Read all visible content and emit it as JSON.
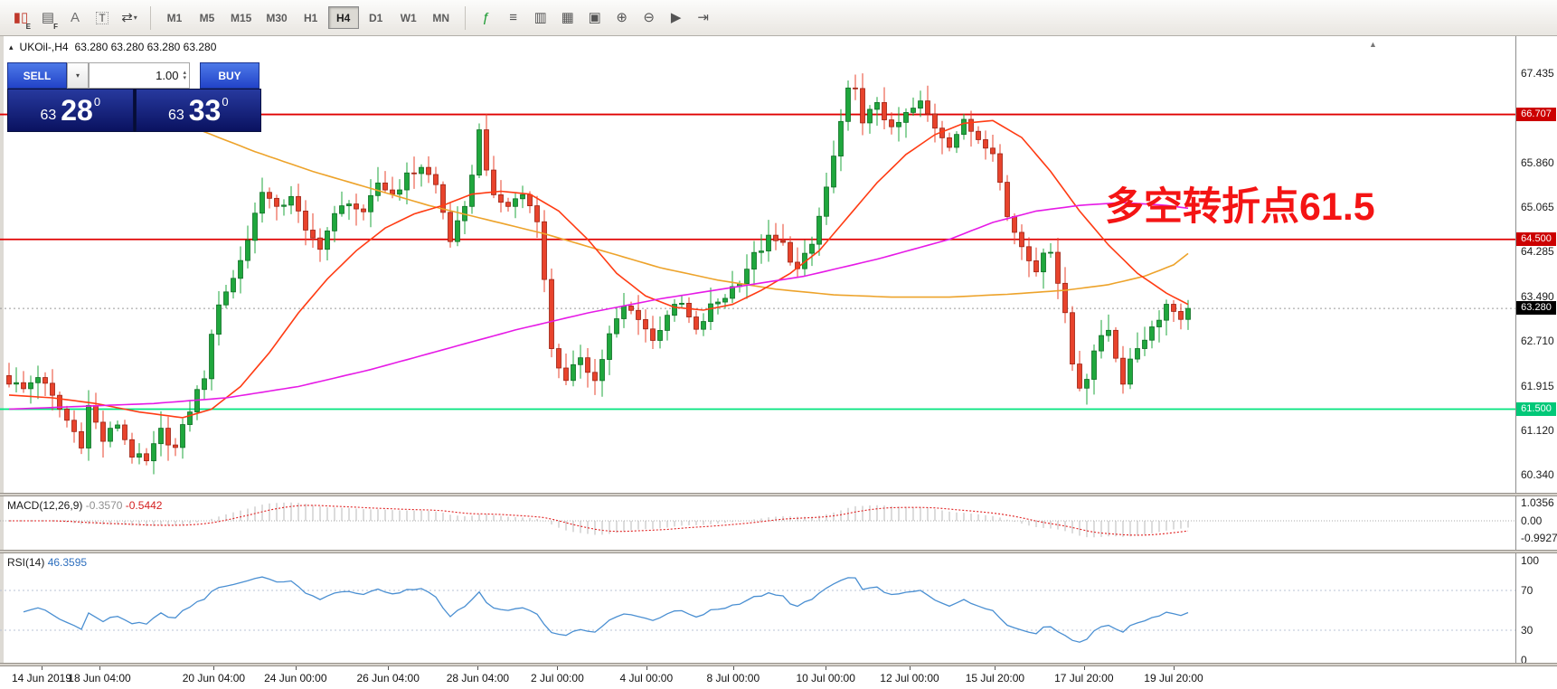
{
  "toolbar": {
    "left_icons": [
      {
        "name": "candlestick-chart-icon",
        "glyph": "▮▯",
        "color": "#c0392b",
        "sub": "E"
      },
      {
        "name": "chart-grid-icon",
        "glyph": "▤",
        "color": "#5a5a5a",
        "sub": "F"
      },
      {
        "name": "font-label-icon",
        "glyph": "A",
        "color": "#707070"
      },
      {
        "name": "text-tool-icon",
        "glyph": "T",
        "color": "#444444",
        "boxed": true
      },
      {
        "name": "drawing-tools-dropdown",
        "glyph": "⇄",
        "color": "#444444",
        "caret": true
      }
    ],
    "timeframes": {
      "items": [
        "M1",
        "M5",
        "M15",
        "M30",
        "H1",
        "H4",
        "D1",
        "W1",
        "MN"
      ],
      "active": "H4"
    },
    "right_icons": [
      {
        "name": "indicators-icon",
        "glyph": "ƒ",
        "color": "#1a9a30"
      },
      {
        "name": "objects-list-icon",
        "glyph": "≡",
        "color": "#555555"
      },
      {
        "name": "periods-icon",
        "glyph": "▥",
        "color": "#555555"
      },
      {
        "name": "templates-icon",
        "glyph": "▦",
        "color": "#555555"
      },
      {
        "name": "tile-windows-icon",
        "glyph": "▣",
        "color": "#555555"
      },
      {
        "name": "zoom-in-icon",
        "glyph": "⊕",
        "color": "#555555"
      },
      {
        "name": "zoom-out-icon",
        "glyph": "⊖",
        "color": "#555555"
      },
      {
        "name": "auto-scroll-icon",
        "glyph": "▶",
        "color": "#555555"
      },
      {
        "name": "chart-shift-icon",
        "glyph": "⇥",
        "color": "#555555"
      }
    ]
  },
  "chart": {
    "title": "UKOil-,H4",
    "ohlc": "63.280 63.280 63.280 63.280",
    "collapse_glyph": "▴",
    "scroll_marker_glyph": "▲",
    "annotation": {
      "text": "多空转折点61.5",
      "color": "#f41414"
    },
    "levels": [
      {
        "label": "66.707",
        "price": 66.707,
        "color": "#e00000",
        "badge": "#cc0000"
      },
      {
        "label": "64.500",
        "price": 64.5,
        "color": "#e00000",
        "badge": "#cc0000"
      },
      {
        "label": "61.500",
        "price": 61.5,
        "color": "#00e57e",
        "badge": "#00c878"
      }
    ],
    "current_price": {
      "label": "63.280",
      "price": 63.28,
      "badge": "#000000"
    },
    "price_axis": [
      "67.435",
      "65.860",
      "65.065",
      "64.285",
      "63.490",
      "62.710",
      "61.915",
      "61.120",
      "60.340"
    ]
  },
  "chart_data": {
    "type": "candlestick",
    "symbol": "UKOil-",
    "timeframe": "H4",
    "last_close": 63.28,
    "price_range_visible": [
      60.34,
      67.435
    ],
    "up_color": "#1fa73d",
    "down_color": "#e8432c",
    "close_keypoints": [
      [
        0,
        62.0
      ],
      [
        2,
        61.85
      ],
      [
        4,
        62.1
      ],
      [
        6,
        61.7
      ],
      [
        8,
        61.3
      ],
      [
        10,
        60.9
      ],
      [
        11,
        61.55
      ],
      [
        13,
        60.95
      ],
      [
        15,
        61.25
      ],
      [
        17,
        60.7
      ],
      [
        19,
        60.55
      ],
      [
        21,
        61.1
      ],
      [
        23,
        60.8
      ],
      [
        25,
        61.5
      ],
      [
        27,
        62.1
      ],
      [
        29,
        63.4
      ],
      [
        31,
        63.8
      ],
      [
        33,
        64.5
      ],
      [
        35,
        65.4
      ],
      [
        37,
        65.0
      ],
      [
        39,
        65.3
      ],
      [
        41,
        64.6
      ],
      [
        43,
        64.4
      ],
      [
        45,
        64.9
      ],
      [
        47,
        65.2
      ],
      [
        49,
        64.9
      ],
      [
        51,
        65.5
      ],
      [
        53,
        65.3
      ],
      [
        55,
        65.6
      ],
      [
        57,
        65.8
      ],
      [
        59,
        65.45
      ],
      [
        61,
        64.5
      ],
      [
        63,
        65.0
      ],
      [
        65,
        66.4
      ],
      [
        67,
        65.2
      ],
      [
        69,
        65.1
      ],
      [
        71,
        65.3
      ],
      [
        73,
        64.9
      ],
      [
        75,
        62.6
      ],
      [
        77,
        61.95
      ],
      [
        79,
        62.45
      ],
      [
        81,
        62.0
      ],
      [
        83,
        62.8
      ],
      [
        85,
        63.3
      ],
      [
        87,
        63.15
      ],
      [
        89,
        62.7
      ],
      [
        91,
        63.2
      ],
      [
        93,
        63.35
      ],
      [
        95,
        62.85
      ],
      [
        97,
        63.3
      ],
      [
        99,
        63.5
      ],
      [
        101,
        63.8
      ],
      [
        103,
        64.2
      ],
      [
        105,
        64.5
      ],
      [
        107,
        64.4
      ],
      [
        109,
        63.95
      ],
      [
        111,
        64.4
      ],
      [
        113,
        65.4
      ],
      [
        115,
        66.5
      ],
      [
        116,
        67.1
      ],
      [
        117,
        67.25
      ],
      [
        118,
        66.5
      ],
      [
        120,
        66.95
      ],
      [
        122,
        66.4
      ],
      [
        124,
        66.7
      ],
      [
        126,
        66.9
      ],
      [
        128,
        66.5
      ],
      [
        130,
        66.2
      ],
      [
        132,
        66.55
      ],
      [
        134,
        66.3
      ],
      [
        136,
        66.1
      ],
      [
        138,
        64.9
      ],
      [
        140,
        64.4
      ],
      [
        142,
        64.0
      ],
      [
        144,
        64.35
      ],
      [
        146,
        63.2
      ],
      [
        147,
        62.3
      ],
      [
        148,
        61.9
      ],
      [
        149,
        62.1
      ],
      [
        150,
        62.55
      ],
      [
        152,
        62.9
      ],
      [
        154,
        62.0
      ],
      [
        156,
        62.6
      ],
      [
        158,
        62.95
      ],
      [
        160,
        63.35
      ],
      [
        162,
        63.15
      ],
      [
        163,
        63.28
      ]
    ],
    "ma_lines": [
      {
        "name": "slow-ma",
        "color": "#eda32b",
        "points": [
          [
            26,
            66.45
          ],
          [
            34,
            66.05
          ],
          [
            42,
            65.7
          ],
          [
            50,
            65.4
          ],
          [
            58,
            65.1
          ],
          [
            66,
            64.85
          ],
          [
            74,
            64.6
          ],
          [
            82,
            64.3
          ],
          [
            90,
            64.0
          ],
          [
            98,
            63.78
          ],
          [
            106,
            63.62
          ],
          [
            114,
            63.52
          ],
          [
            122,
            63.48
          ],
          [
            130,
            63.48
          ],
          [
            138,
            63.53
          ],
          [
            146,
            63.6
          ],
          [
            152,
            63.7
          ],
          [
            157,
            63.85
          ],
          [
            161,
            64.05
          ],
          [
            163,
            64.25
          ]
        ]
      },
      {
        "name": "mid-ma",
        "color": "#ff3c14",
        "points": [
          [
            0,
            61.75
          ],
          [
            6,
            61.7
          ],
          [
            12,
            61.6
          ],
          [
            18,
            61.45
          ],
          [
            24,
            61.35
          ],
          [
            28,
            61.5
          ],
          [
            32,
            61.9
          ],
          [
            36,
            62.5
          ],
          [
            40,
            63.2
          ],
          [
            44,
            63.8
          ],
          [
            48,
            64.3
          ],
          [
            52,
            64.7
          ],
          [
            56,
            64.95
          ],
          [
            60,
            65.1
          ],
          [
            64,
            65.3
          ],
          [
            68,
            65.35
          ],
          [
            72,
            65.3
          ],
          [
            76,
            65.0
          ],
          [
            80,
            64.5
          ],
          [
            84,
            63.9
          ],
          [
            88,
            63.5
          ],
          [
            92,
            63.3
          ],
          [
            96,
            63.25
          ],
          [
            100,
            63.35
          ],
          [
            104,
            63.6
          ],
          [
            108,
            63.9
          ],
          [
            112,
            64.3
          ],
          [
            116,
            64.9
          ],
          [
            120,
            65.5
          ],
          [
            124,
            66.0
          ],
          [
            128,
            66.35
          ],
          [
            132,
            66.55
          ],
          [
            136,
            66.6
          ],
          [
            140,
            66.3
          ],
          [
            144,
            65.7
          ],
          [
            148,
            65.0
          ],
          [
            152,
            64.4
          ],
          [
            156,
            63.9
          ],
          [
            160,
            63.55
          ],
          [
            163,
            63.35
          ]
        ]
      },
      {
        "name": "trend-ma",
        "color": "#e61ae6",
        "points": [
          [
            0,
            61.5
          ],
          [
            10,
            61.55
          ],
          [
            20,
            61.6
          ],
          [
            30,
            61.7
          ],
          [
            40,
            61.9
          ],
          [
            50,
            62.2
          ],
          [
            60,
            62.55
          ],
          [
            70,
            62.9
          ],
          [
            80,
            63.2
          ],
          [
            90,
            63.45
          ],
          [
            100,
            63.65
          ],
          [
            110,
            63.85
          ],
          [
            120,
            64.15
          ],
          [
            130,
            64.5
          ],
          [
            136,
            64.8
          ],
          [
            142,
            65.0
          ],
          [
            148,
            65.1
          ],
          [
            154,
            65.15
          ],
          [
            160,
            65.1
          ],
          [
            163,
            65.05
          ]
        ]
      }
    ]
  },
  "macd": {
    "label": "MACD(12,26,9)",
    "value_main": "-0.3570",
    "value_signal": "-0.5442",
    "axis": [
      "1.0356",
      "0.00",
      "-0.9927"
    ],
    "histogram_color": "#b8b8b8",
    "signal_color": "#e02020"
  },
  "rsi": {
    "label": "RSI(14)",
    "value": "46.3595",
    "axis": [
      "100",
      "70",
      "30",
      "0"
    ],
    "levels": [
      70,
      30
    ],
    "line_color": "#4a8fd2"
  },
  "time_axis": [
    {
      "label": "14 Jun 2019",
      "bar": 4.5
    },
    {
      "label": "18 Jun 04:00",
      "bar": 12.5
    },
    {
      "label": "20 Jun 04:00",
      "bar": 28.3
    },
    {
      "label": "24 Jun 00:00",
      "bar": 39.6
    },
    {
      "label": "26 Jun 04:00",
      "bar": 52.4
    },
    {
      "label": "28 Jun 04:00",
      "bar": 64.8
    },
    {
      "label": "2 Jul 00:00",
      "bar": 75.8
    },
    {
      "label": "4 Jul 00:00",
      "bar": 88.1
    },
    {
      "label": "8 Jul 00:00",
      "bar": 100.1
    },
    {
      "label": "10 Jul 00:00",
      "bar": 112.9
    },
    {
      "label": "12 Jul 00:00",
      "bar": 124.5
    },
    {
      "label": "15 Jul 20:00",
      "bar": 136.3
    },
    {
      "label": "17 Jul 20:00",
      "bar": 148.6
    },
    {
      "label": "19 Jul 20:00",
      "bar": 161.0
    }
  ],
  "trade_panel": {
    "sell_label": "SELL",
    "buy_label": "BUY",
    "volume": "1.00",
    "sell_price": {
      "base": "63",
      "pips": "28",
      "sup": "0"
    },
    "buy_price": {
      "base": "63",
      "pips": "33",
      "sup": "0"
    }
  }
}
